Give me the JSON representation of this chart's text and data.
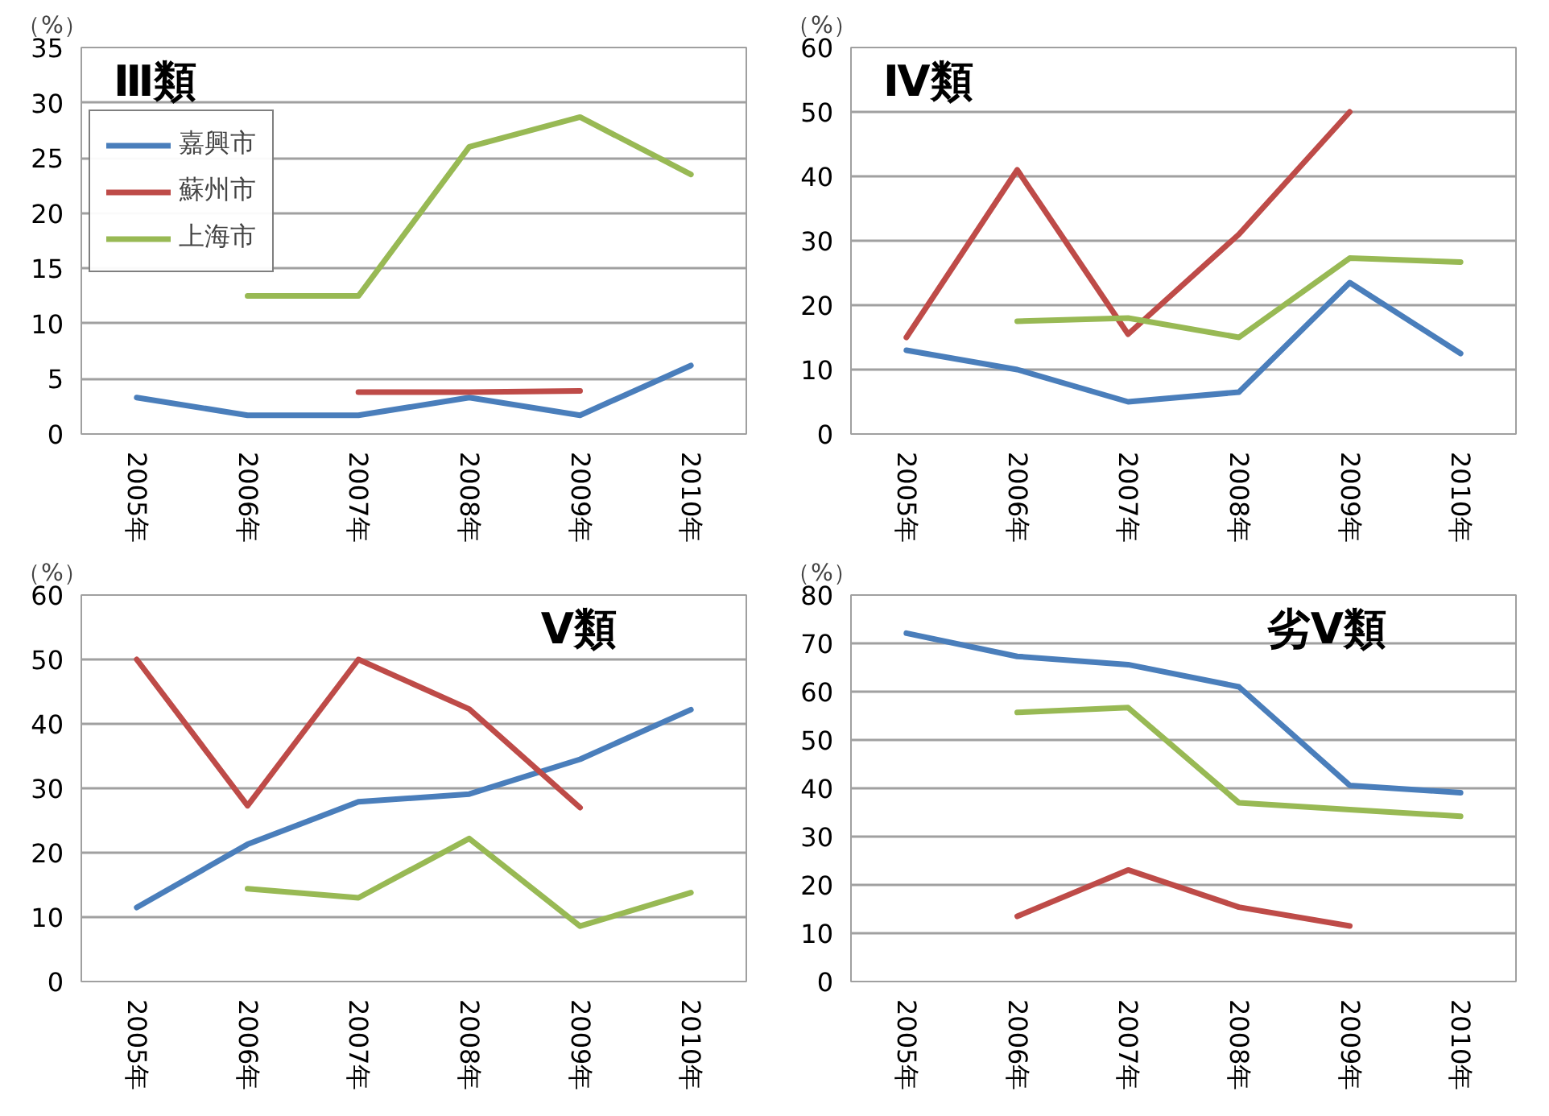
{
  "chart_data": [
    {
      "type": "line",
      "title": "Ⅲ類",
      "ylabel": "（%）",
      "categories": [
        "2005年",
        "2006年",
        "2007年",
        "2008年",
        "2009年",
        "2010年"
      ],
      "ylim": [
        0,
        35
      ],
      "yticks": [
        0,
        5,
        10,
        15,
        20,
        25,
        30,
        35
      ],
      "grid": "y",
      "legend": "top left",
      "series": [
        {
          "name": "嘉興市",
          "color": "#4a7ebb",
          "values": [
            3.3,
            1.7,
            1.7,
            3.3,
            1.7,
            6.2
          ]
        },
        {
          "name": "蘇州市",
          "color": "#be4b48",
          "values": [
            null,
            null,
            3.8,
            3.8,
            3.9,
            null
          ]
        },
        {
          "name": "上海市",
          "color": "#98b954",
          "values": [
            null,
            12.5,
            12.5,
            26,
            28.7,
            23.5
          ]
        }
      ]
    },
    {
      "type": "line",
      "title": "Ⅳ類",
      "ylabel": "（%）",
      "categories": [
        "2005年",
        "2006年",
        "2007年",
        "2008年",
        "2009年",
        "2010年"
      ],
      "ylim": [
        0,
        60
      ],
      "yticks": [
        0,
        10,
        20,
        30,
        40,
        50,
        60
      ],
      "grid": "y",
      "series": [
        {
          "color": "#4a7ebb",
          "values": [
            13,
            10,
            5,
            6.5,
            23.5,
            12.5
          ]
        },
        {
          "color": "#be4b48",
          "values": [
            15,
            41,
            15.5,
            31,
            50,
            null
          ]
        },
        {
          "color": "#98b954",
          "values": [
            null,
            17.5,
            18,
            15,
            27.3,
            26.7
          ]
        }
      ]
    },
    {
      "type": "line",
      "title": "Ⅴ類",
      "ylabel": "（%）",
      "categories": [
        "2005年",
        "2006年",
        "2007年",
        "2008年",
        "2009年",
        "2010年"
      ],
      "ylim": [
        0,
        60
      ],
      "yticks": [
        0,
        10,
        20,
        30,
        40,
        50,
        60
      ],
      "grid": "y",
      "series": [
        {
          "color": "#4a7ebb",
          "values": [
            11.5,
            21.3,
            27.9,
            29.1,
            34.5,
            42.2
          ]
        },
        {
          "color": "#be4b48",
          "values": [
            50,
            27.3,
            50,
            42.3,
            27,
            null
          ]
        },
        {
          "color": "#98b954",
          "values": [
            null,
            14.4,
            13,
            22.2,
            8.6,
            13.8
          ]
        }
      ]
    },
    {
      "type": "line",
      "title": "劣Ⅴ類",
      "ylabel": "（%）",
      "categories": [
        "2005年",
        "2006年",
        "2007年",
        "2008年",
        "2009年",
        "2010年"
      ],
      "ylim": [
        0,
        80
      ],
      "yticks": [
        0,
        10,
        20,
        30,
        40,
        50,
        60,
        70,
        80
      ],
      "grid": "y",
      "series": [
        {
          "color": "#4a7ebb",
          "values": [
            72.1,
            67.3,
            65.6,
            61,
            40.6,
            39.1
          ]
        },
        {
          "color": "#be4b48",
          "values": [
            null,
            13.5,
            23.1,
            15.4,
            11.5,
            null
          ]
        },
        {
          "color": "#98b954",
          "values": [
            null,
            55.7,
            56.7,
            37,
            35.6,
            34.2
          ]
        }
      ]
    }
  ]
}
